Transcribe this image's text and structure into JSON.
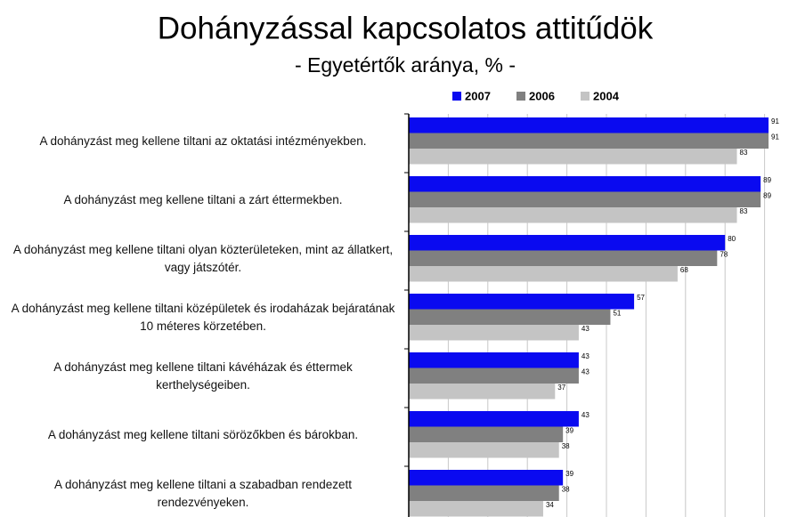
{
  "chart_data": {
    "type": "hbar",
    "title": "Dohányzással kapcsolatos attitűdök",
    "subtitle": "- Egyetértők aránya, % -",
    "categories": [
      "A dohányzást meg kellene tiltani az oktatási intézményekben.",
      "A dohányzást meg kellene tiltani a zárt éttermekben.",
      "A dohányzást meg kellene tiltani olyan közterületeken, mint az állatkert, vagy játszótér.",
      "A dohányzást meg kellene tiltani középületek és irodaházak bejáratának 10 méteres körzetében.",
      "A dohányzást meg kellene tiltani kávéházak és éttermek kerthelységeiben.",
      "A dohányzást meg kellene tiltani sörözőkben és bárokban.",
      "A dohányzást meg kellene tiltani a szabadban rendezett rendezvényeken."
    ],
    "series": [
      {
        "name": "2007",
        "color": "#0a0af0",
        "values": [
          91,
          89,
          80,
          57,
          43,
          43,
          39
        ]
      },
      {
        "name": "2006",
        "color": "#808080",
        "values": [
          91,
          89,
          78,
          51,
          43,
          39,
          38
        ]
      },
      {
        "name": "2004",
        "color": "#c4c4c4",
        "values": [
          83,
          83,
          68,
          43,
          37,
          38,
          34
        ]
      }
    ],
    "xlim": [
      0,
      100
    ],
    "xticks": [
      0,
      10,
      20,
      30,
      40,
      50,
      60,
      70,
      80,
      90,
      100
    ],
    "grid": true
  }
}
